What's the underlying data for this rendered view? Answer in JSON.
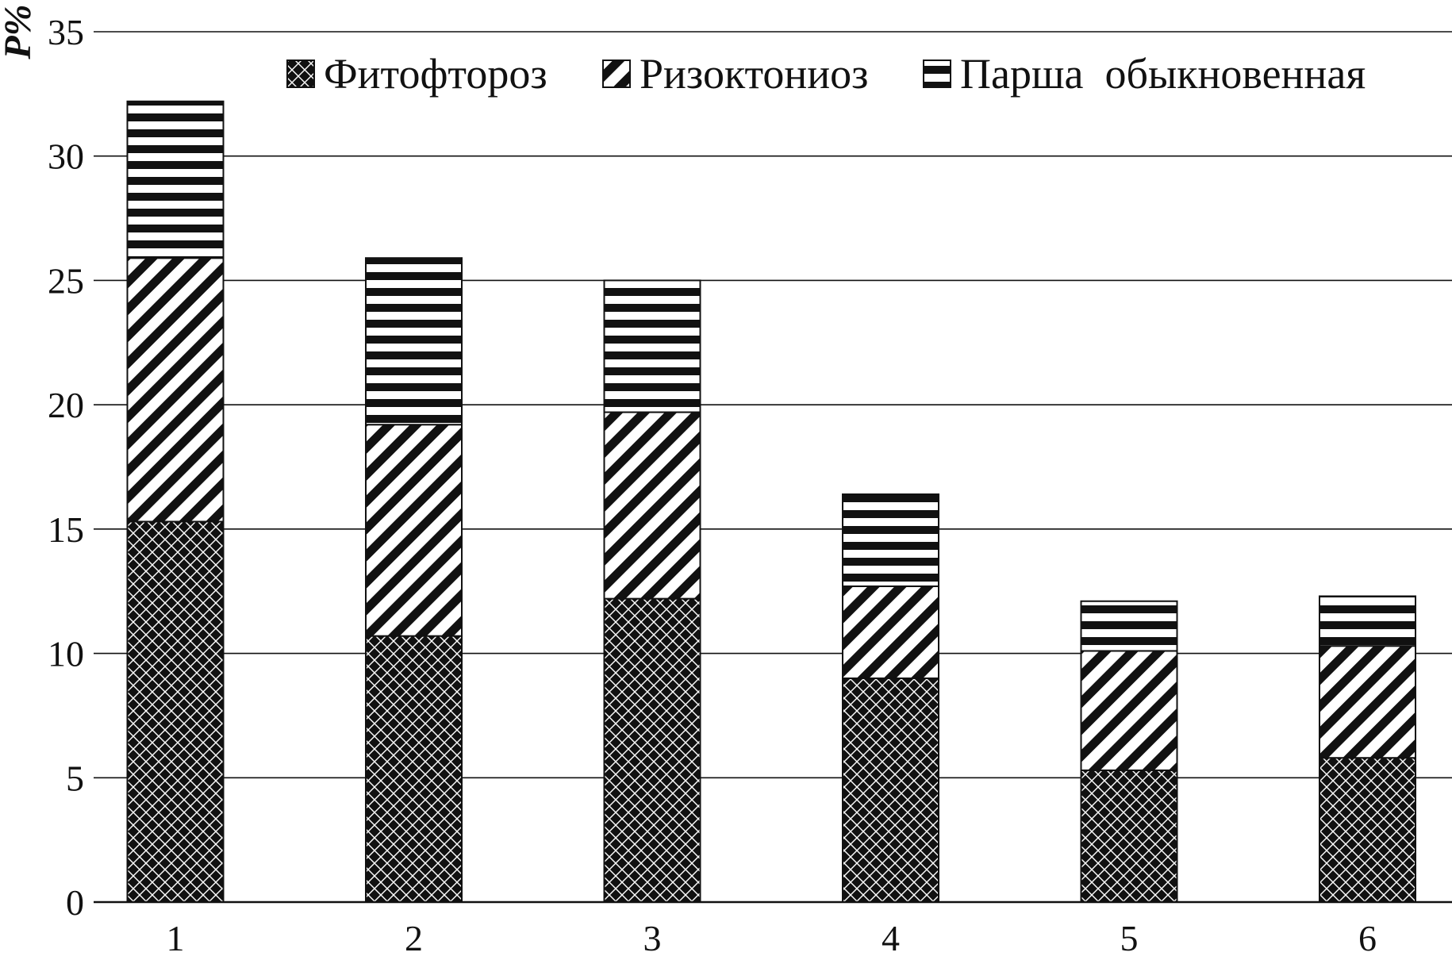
{
  "chart_data": {
    "type": "bar",
    "stacked": true,
    "title": "",
    "xlabel": "",
    "ylabel": "P%",
    "categories": [
      "1",
      "2",
      "3",
      "4",
      "5",
      "6"
    ],
    "ylim": [
      0,
      35
    ],
    "yticks": [
      0,
      5,
      10,
      15,
      20,
      25,
      30,
      35
    ],
    "grid": true,
    "legend_position": "top-right",
    "series": [
      {
        "name": "Фитофтороз",
        "pattern": "checker",
        "values": [
          15.3,
          10.7,
          12.2,
          9.0,
          5.3,
          5.8
        ]
      },
      {
        "name": "Ризоктониоз",
        "pattern": "diagonal",
        "values": [
          10.6,
          8.5,
          7.5,
          3.7,
          4.8,
          4.5
        ]
      },
      {
        "name": "Парша  обыкновенная",
        "pattern": "horizontal",
        "values": [
          6.3,
          6.7,
          5.3,
          3.7,
          2.0,
          2.0
        ]
      }
    ],
    "colors": {
      "ink": "#111111",
      "background": "#ffffff"
    }
  }
}
